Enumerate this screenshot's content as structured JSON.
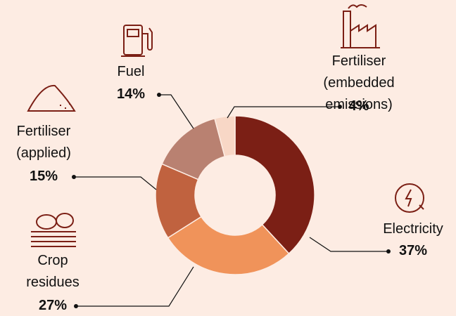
{
  "chart_data": {
    "type": "donut",
    "categories": [
      "Electricity",
      "Crop\nresidues",
      "Fertiliser\n(applied)",
      "Fuel",
      "Fertiliser\n(embedded emissions)"
    ],
    "values": [
      37,
      27,
      15,
      14,
      4
    ],
    "value_labels": [
      "37%",
      "27%",
      "15%",
      "14%",
      "4%"
    ],
    "colors": [
      "#7b1f15",
      "#f0935a",
      "#c0623f",
      "#b98171",
      "#f8d7c6"
    ]
  }
}
